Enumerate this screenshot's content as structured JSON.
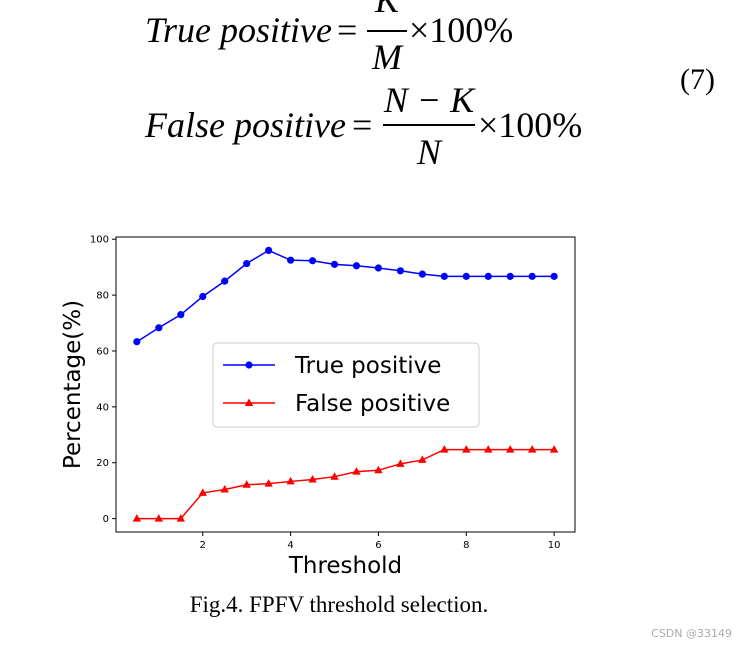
{
  "equations": {
    "items": [
      {
        "lhs": "True positive",
        "operator": "=",
        "numerator": "K",
        "denominator": "M",
        "factor": "×100%"
      },
      {
        "lhs": "False positive",
        "operator": "=",
        "numerator": "N − K",
        "denominator": "N",
        "factor": "×100%"
      }
    ],
    "number": "(7)"
  },
  "chart_data": {
    "type": "line",
    "x": [
      0.5,
      1,
      1.5,
      2,
      2.5,
      3,
      3.5,
      4,
      4.5,
      5,
      5.5,
      6,
      6.5,
      7,
      7.5,
      8,
      8.5,
      9,
      9.5,
      10
    ],
    "series": [
      {
        "name": "True positive",
        "color": "#0000ff",
        "marker": "circle",
        "values": [
          63.3,
          68.3,
          73,
          79.5,
          85,
          91.3,
          96,
          92.5,
          92.3,
          91,
          90.5,
          89.7,
          88.7,
          87.5,
          86.7,
          86.7,
          86.7,
          86.7,
          86.7,
          86.7
        ]
      },
      {
        "name": "False positive",
        "color": "#ff0000",
        "marker": "triangle",
        "values": [
          0,
          0,
          0,
          9.2,
          10.4,
          12.1,
          12.5,
          13.3,
          14,
          15,
          16.8,
          17.3,
          19.6,
          21,
          24.7,
          24.7,
          24.7,
          24.7,
          24.7,
          24.7
        ]
      }
    ],
    "xlabel": "Threshold",
    "ylabel": "Percentage(%)",
    "xlim": [
      0.025,
      10.475
    ],
    "ylim": [
      -4.8,
      100.8
    ],
    "xticks": [
      2,
      4,
      6,
      8,
      10
    ],
    "yticks": [
      0,
      20,
      40,
      60,
      80,
      100
    ],
    "legend": "center"
  },
  "caption": "Fig.4. FPFV threshold selection.",
  "watermark": "CSDN @33149"
}
